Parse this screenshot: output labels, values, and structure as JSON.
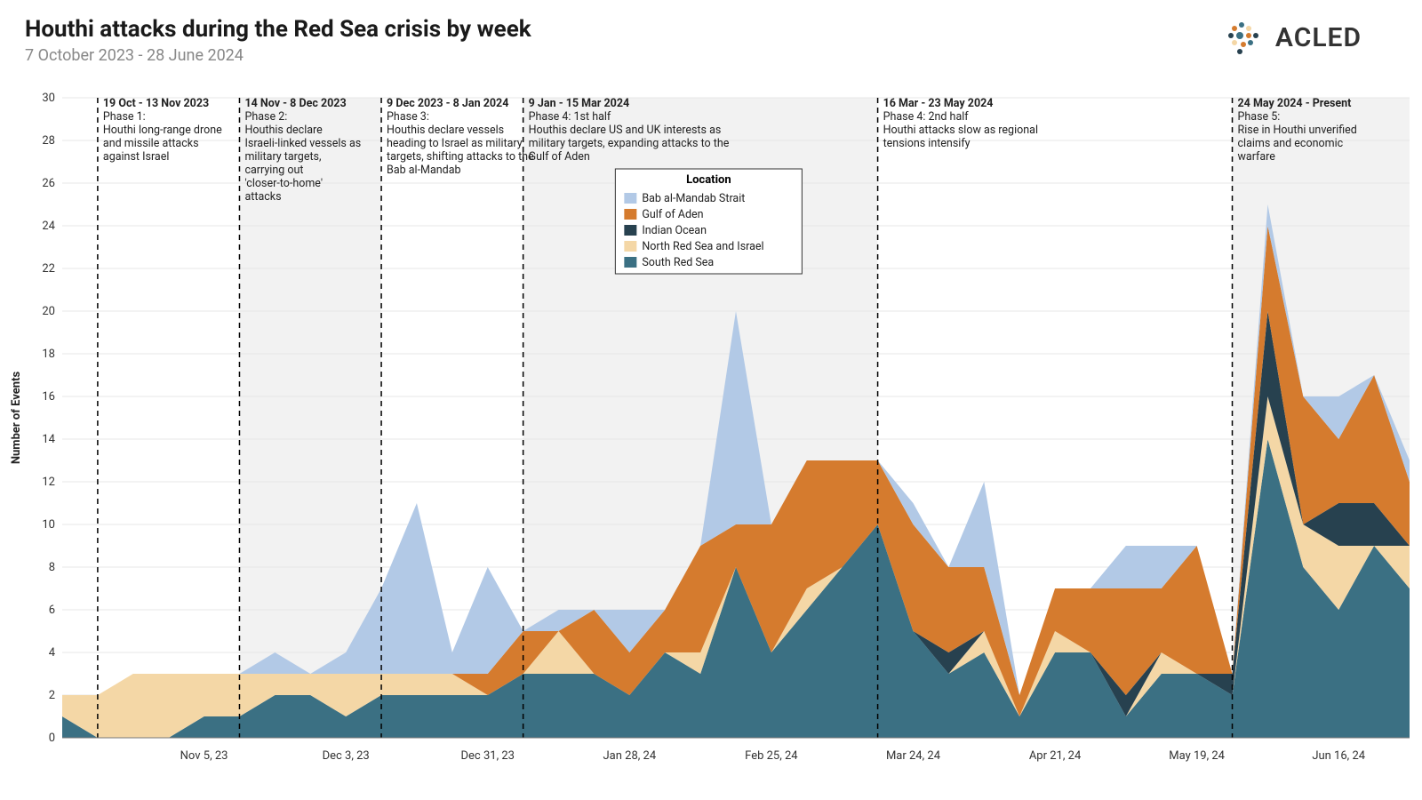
{
  "header": {
    "title": "Houthi attacks during the Red Sea crisis by week",
    "subtitle": "7 October 2023 - 28 June 2024",
    "brand": "ACLED"
  },
  "chart": {
    "type": "stacked-area",
    "ylabel": "Number of Events",
    "ylim": [
      0,
      30
    ],
    "ytick_step": 2,
    "x_count": 39,
    "x_ticks": [
      {
        "i": 4,
        "label": "Nov 5, 23"
      },
      {
        "i": 8,
        "label": "Dec 3, 23"
      },
      {
        "i": 12,
        "label": "Dec 31, 23"
      },
      {
        "i": 16,
        "label": "Jan 28, 24"
      },
      {
        "i": 20,
        "label": "Feb 25, 24"
      },
      {
        "i": 24,
        "label": "Mar 24, 24"
      },
      {
        "i": 28,
        "label": "Apr 21, 24"
      },
      {
        "i": 32,
        "label": "May 19, 24"
      },
      {
        "i": 36,
        "label": "Jun 16, 24"
      }
    ],
    "colors": {
      "bab_al_mandab": "#b2c9e6",
      "gulf_of_aden": "#d57b2e",
      "indian_ocean": "#27414f",
      "north_red_sea": "#f4d7a6",
      "south_red_sea": "#3b7083",
      "grid": "#e7e7e7",
      "shade": "#f2f2f2",
      "axis": "#777"
    },
    "legend": {
      "title": "Location",
      "items": [
        {
          "key": "bab_al_mandab",
          "label": "Bab al-Mandab Strait"
        },
        {
          "key": "gulf_of_aden",
          "label": "Gulf of Aden"
        },
        {
          "key": "indian_ocean",
          "label": "Indian Ocean"
        },
        {
          "key": "north_red_sea",
          "label": "North Red Sea and Israel"
        },
        {
          "key": "south_red_sea",
          "label": "South Red Sea"
        }
      ]
    },
    "series_order_bottom_to_top": [
      "south_red_sea",
      "north_red_sea",
      "indian_ocean",
      "gulf_of_aden",
      "bab_al_mandab"
    ],
    "series": {
      "south_red_sea": [
        1,
        0,
        0,
        0,
        1,
        1,
        2,
        2,
        1,
        2,
        2,
        2,
        2,
        3,
        3,
        3,
        2,
        4,
        3,
        8,
        4,
        6,
        8,
        10,
        5,
        3,
        4,
        1,
        4,
        4,
        1,
        3,
        3,
        2,
        14,
        8,
        6,
        9,
        7
      ],
      "north_red_sea": [
        1,
        2,
        3,
        3,
        2,
        2,
        1,
        1,
        2,
        1,
        1,
        1,
        0,
        0,
        2,
        0,
        0,
        0,
        1,
        0,
        0,
        1,
        0,
        0,
        0,
        0,
        1,
        0,
        1,
        0,
        0,
        1,
        0,
        0,
        2,
        2,
        3,
        0,
        2
      ],
      "indian_ocean": [
        0,
        0,
        0,
        0,
        0,
        0,
        0,
        0,
        0,
        0,
        0,
        0,
        0,
        0,
        0,
        0,
        0,
        0,
        0,
        0,
        0,
        0,
        0,
        0,
        0,
        1,
        0,
        0,
        0,
        0,
        1,
        0,
        0,
        1,
        4,
        0,
        2,
        2,
        0
      ],
      "gulf_of_aden": [
        0,
        0,
        0,
        0,
        0,
        0,
        0,
        0,
        0,
        0,
        0,
        0,
        1,
        2,
        0,
        3,
        2,
        2,
        5,
        2,
        6,
        6,
        5,
        3,
        5,
        4,
        3,
        1,
        2,
        3,
        5,
        3,
        6,
        0,
        4,
        6,
        3,
        6,
        3
      ],
      "bab_al_mandab": [
        0,
        0,
        0,
        0,
        0,
        0,
        1,
        0,
        1,
        4,
        8,
        1,
        5,
        0,
        1,
        0,
        2,
        0,
        0,
        10,
        0,
        0,
        0,
        0,
        1,
        0,
        4,
        0,
        0,
        0,
        2,
        2,
        0,
        0,
        1,
        0,
        2,
        0,
        1
      ]
    },
    "phases": [
      {
        "start": 1,
        "end": 5,
        "shade": false,
        "header": "19 Oct - 13 Nov 2023",
        "lines": [
          "Phase 1:",
          "Houthi long-range drone",
          "and missile attacks",
          "against Israel"
        ]
      },
      {
        "start": 5,
        "end": 9,
        "shade": true,
        "header": "14 Nov - 8 Dec 2023",
        "lines": [
          "Phase 2:",
          "Houthis declare",
          "Israeli-linked vessels as",
          "military targets,",
          "carrying out",
          "'closer-to-home'",
          "attacks"
        ]
      },
      {
        "start": 9,
        "end": 13,
        "shade": false,
        "header": "9 Dec 2023 - 8 Jan 2024",
        "lines": [
          "Phase 3:",
          "Houthis declare vessels",
          "heading to Israel as military",
          "targets, shifting attacks to the",
          "Bab al-Mandab"
        ]
      },
      {
        "start": 13,
        "end": 23,
        "shade": true,
        "header": "9 Jan - 15 Mar 2024",
        "lines": [
          "Phase 4: 1st half",
          "Houthis declare US and UK interests as",
          "military targets, expanding attacks to the",
          "Gulf of Aden"
        ]
      },
      {
        "start": 23,
        "end": 33,
        "shade": false,
        "header": "16 Mar - 23 May 2024",
        "lines": [
          "Phase 4: 2nd half",
          "Houthi attacks slow as regional",
          "tensions intensify"
        ]
      },
      {
        "start": 33,
        "end": 38,
        "shade": true,
        "header": "24 May 2024 - Present",
        "lines": [
          "Phase 5:",
          "Rise in Houthi unverified",
          "claims and economic",
          "warfare"
        ]
      }
    ]
  }
}
